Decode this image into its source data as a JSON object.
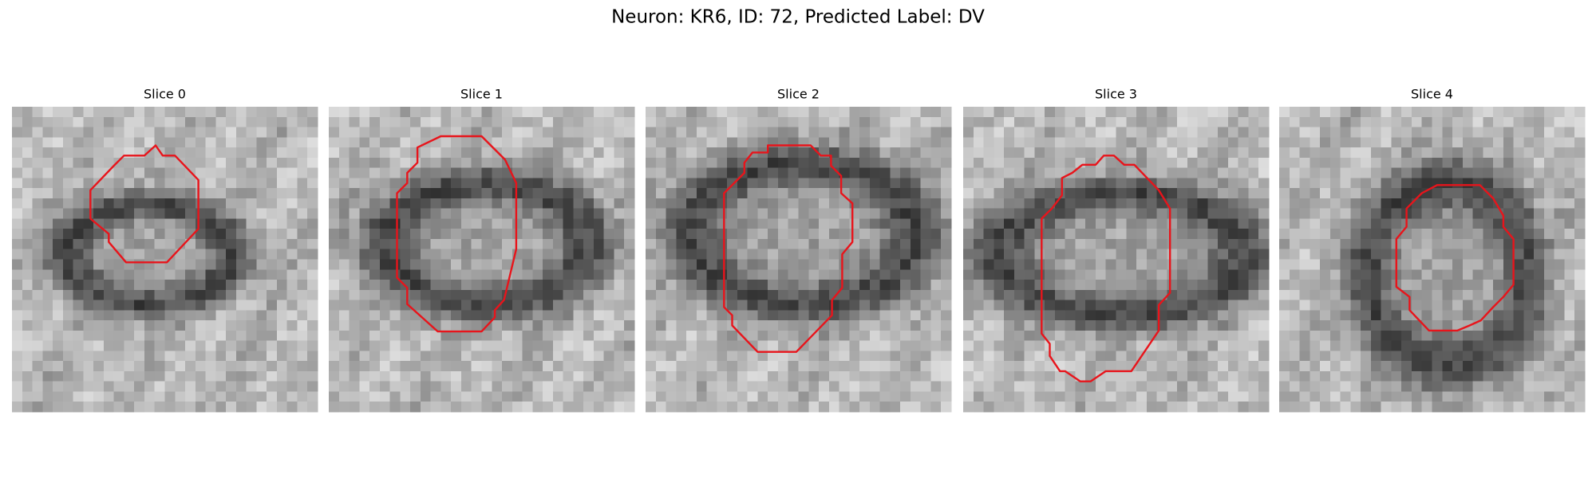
{
  "header": {
    "title": "Neuron: KR6, ID: 72, Predicted Label: DV"
  },
  "panels": [
    {
      "title": "Slice 0"
    },
    {
      "title": "Slice 1"
    },
    {
      "title": "Slice 2"
    },
    {
      "title": "Slice 3"
    },
    {
      "title": "Slice 4"
    }
  ]
}
